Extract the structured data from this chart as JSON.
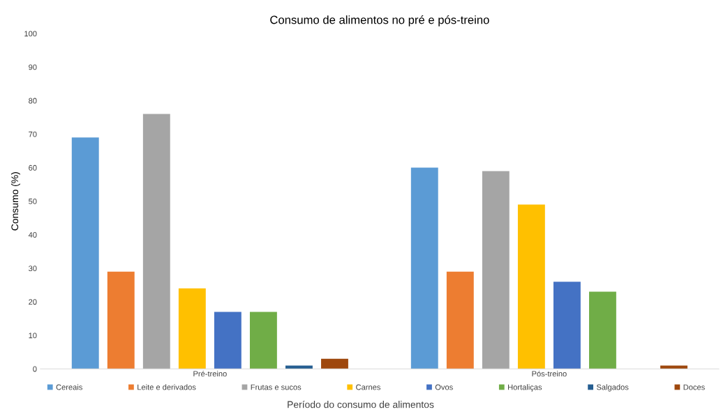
{
  "chart_data": {
    "type": "bar",
    "title": "Consumo de alimentos no pré e pós-treino",
    "xlabel": "Período do consumo de alimentos",
    "ylabel": "Consumo (%)",
    "categories": [
      "Pré-treino",
      "Pós-treino"
    ],
    "series": [
      {
        "name": "Cereais",
        "color": "#5b9bd5",
        "values": [
          69,
          60
        ]
      },
      {
        "name": "Leite e derivados",
        "color": "#ed7d31",
        "values": [
          29,
          29
        ]
      },
      {
        "name": "Frutas e sucos",
        "color": "#a5a5a5",
        "values": [
          76,
          59
        ]
      },
      {
        "name": "Carnes",
        "color": "#ffc000",
        "values": [
          24,
          49
        ]
      },
      {
        "name": "Ovos",
        "color": "#4472c4",
        "values": [
          17,
          26
        ]
      },
      {
        "name": "Hortaliças",
        "color": "#70ad47",
        "values": [
          17,
          23
        ]
      },
      {
        "name": "Salgados",
        "color": "#255e91",
        "values": [
          1,
          0
        ]
      },
      {
        "name": "Doces",
        "color": "#9e480e",
        "values": [
          3,
          1
        ]
      }
    ],
    "ylim": [
      0,
      100
    ],
    "yticks": [
      0,
      10,
      20,
      30,
      40,
      50,
      60,
      70,
      80,
      90,
      100
    ],
    "grid": false,
    "legend": "bottom"
  }
}
